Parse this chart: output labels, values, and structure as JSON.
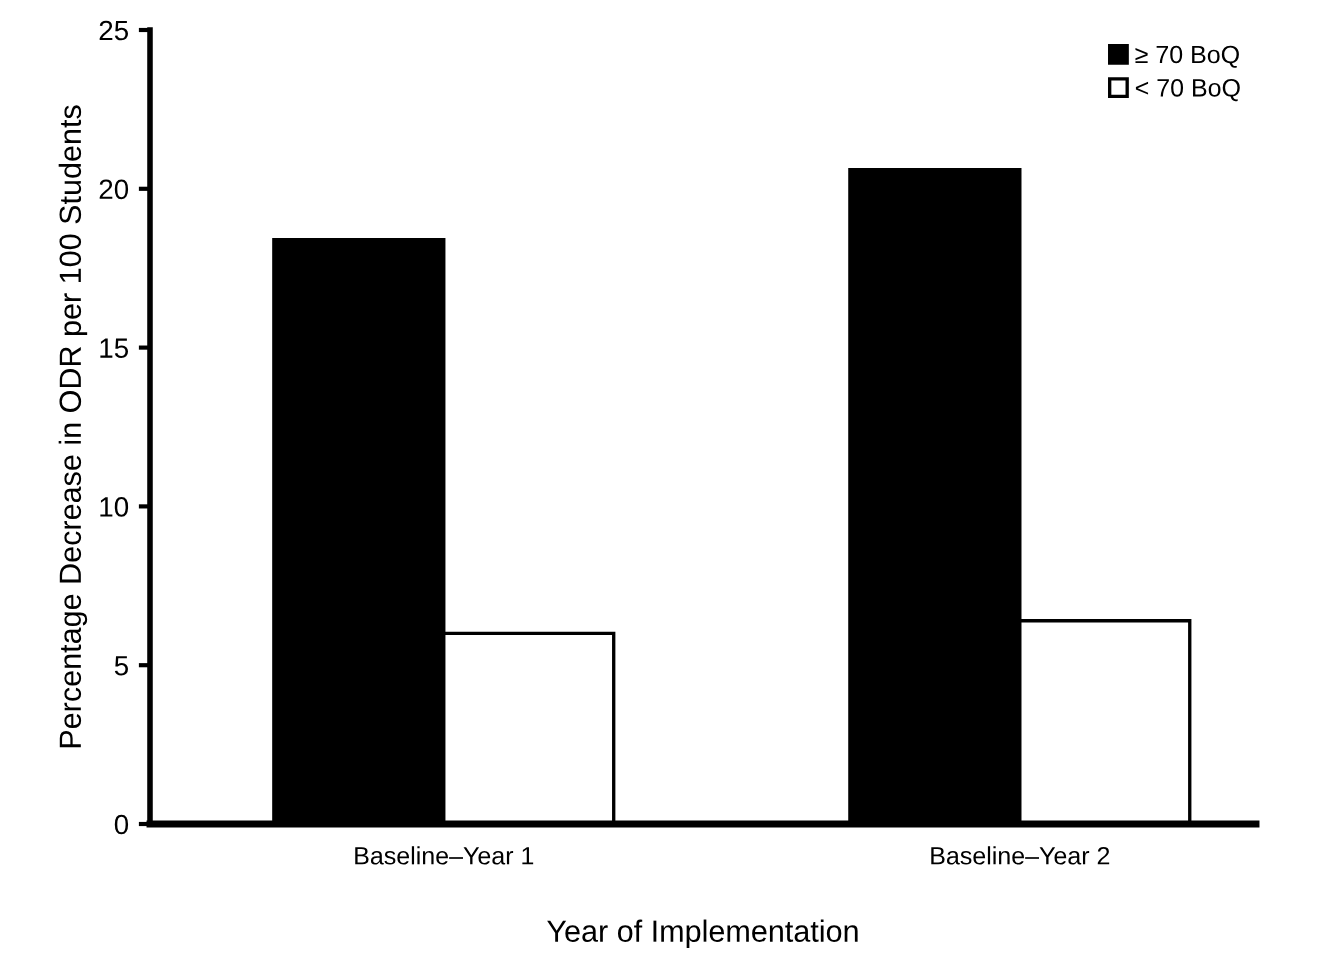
{
  "chart_data": {
    "type": "bar",
    "xlabel": "Year of Implementation",
    "ylabel": "Percentage Decrease in ODR per 100 Students",
    "categories": [
      "Baseline–Year 1",
      "Baseline–Year 2"
    ],
    "series": [
      {
        "name": "≥ 70 BoQ",
        "color": "#000000",
        "values": [
          18.4,
          20.6
        ]
      },
      {
        "name": "< 70 BoQ",
        "color": "#ffffff",
        "values": [
          6.0,
          6.4
        ]
      }
    ],
    "ylim": [
      0,
      25
    ],
    "yticks": [
      0,
      5,
      10,
      15,
      20,
      25
    ],
    "grid": false,
    "legend": "top right"
  }
}
